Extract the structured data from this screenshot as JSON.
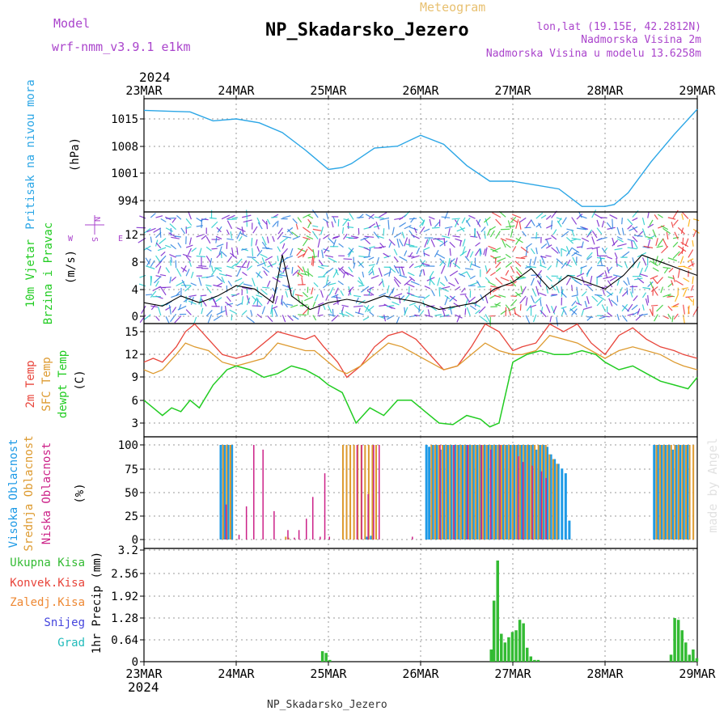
{
  "header": {
    "model_label": "Model",
    "model_value": "wrf-nmm_v3.9.1 e1km",
    "meteogram_label": "Meteogram",
    "station_title": "NP_Skadarsko_Jezero",
    "lonlat": "lon,lat (19.15E, 42.2812N)",
    "altitude": "Nadmorska Visina 2m",
    "model_altitude": "Nadmorska Visina u modelu 13.6258m",
    "footer_station": "NP_Skadarsko_Jezero",
    "watermark": "made by Angel"
  },
  "time_axis": {
    "top_year": "2024",
    "bottom_year": "2024",
    "ticks": [
      "23MAR",
      "24MAR",
      "25MAR",
      "26MAR",
      "27MAR",
      "28MAR",
      "29MAR"
    ]
  },
  "colors": {
    "pressure": "#2ba6e6",
    "temp2m": "#e8443a",
    "sfc": "#dd9a2f",
    "dewpoint": "#22cc22",
    "high_cloud": "#1e9ae6",
    "mid_cloud": "#dd9a2f",
    "low_cloud": "#cc2288",
    "precip_total": "#33bb33",
    "precip_conv": "#e8443a",
    "precip_frozen": "#ee8833",
    "precip_snow": "#4444dd",
    "precip_hail": "#22bbbb",
    "violet_text": "#aa44cc"
  },
  "chart_data": [
    {
      "type": "line",
      "panel": "pressure",
      "ylabel_line1": "Pritisak na nivou mora",
      "ylabel_units": "(hPa)",
      "yticks": [
        "994",
        "1001",
        "1008",
        "1015"
      ],
      "ylim": [
        988,
        1019
      ],
      "grid": true,
      "series": [
        {
          "x": [
            0,
            0.25,
            0.5,
            0.75,
            1.0,
            1.25,
            1.5,
            1.75,
            2.0,
            2.15,
            2.25,
            2.5,
            2.75,
            3.0,
            3.25,
            3.5,
            3.75,
            4.0,
            4.25,
            4.5,
            4.75,
            5.0,
            5.1,
            5.25,
            5.5,
            5.75,
            6.0
          ],
          "values": [
            1017.2,
            1017.0,
            1016.8,
            1014.5,
            1015.0,
            1014.0,
            1011.5,
            1007.0,
            1002.0,
            1002.5,
            1003.5,
            1007.5,
            1008.0,
            1010.8,
            1008.5,
            1003.0,
            999.0,
            999.0,
            998.0,
            997.0,
            992.5,
            992.5,
            993.0,
            996.0,
            1004.0,
            1011.0,
            1017.5
          ]
        }
      ]
    },
    {
      "type": "line",
      "panel": "wind",
      "ylabel_line1": "10m Vjetar",
      "ylabel_line2": "Brzina i Pravac",
      "ylabel_units": "(m/s)",
      "compass": {
        "n": "N",
        "s": "S",
        "e": "E",
        "w": "W"
      },
      "yticks": [
        "0",
        "4",
        "8",
        "12"
      ],
      "ylim": [
        -1,
        15
      ],
      "grid": true,
      "series": [
        {
          "x": [
            0,
            0.2,
            0.4,
            0.6,
            0.8,
            1.0,
            1.2,
            1.4,
            1.5,
            1.6,
            1.8,
            2.0,
            2.2,
            2.4,
            2.6,
            2.8,
            3.0,
            3.2,
            3.4,
            3.6,
            3.8,
            4.0,
            4.2,
            4.4,
            4.6,
            4.8,
            5.0,
            5.2,
            5.4,
            5.6,
            5.8,
            6.0
          ],
          "values": [
            2,
            1.5,
            3,
            2,
            3,
            4.5,
            4,
            2,
            9,
            3,
            1,
            2,
            2.5,
            2,
            3,
            2.5,
            2,
            1,
            1.5,
            2,
            4,
            5,
            7,
            4,
            6,
            5,
            4,
            6,
            9,
            8,
            7,
            6
          ]
        }
      ]
    },
    {
      "type": "line",
      "panel": "temperature",
      "ylabel_line1": "2m Temp",
      "ylabel_line2": "SFC Temp",
      "ylabel_line3": "dewpt Temp",
      "ylabel_units": "(C)",
      "yticks": [
        "3",
        "6",
        "9",
        "12",
        "15"
      ],
      "ylim": [
        1.3,
        16
      ],
      "grid": true,
      "series": [
        {
          "name": "2m Temp",
          "x": [
            0,
            0.1,
            0.2,
            0.35,
            0.45,
            0.55,
            0.7,
            0.85,
            1.0,
            1.15,
            1.3,
            1.45,
            1.6,
            1.75,
            1.85,
            1.95,
            2.1,
            2.2,
            2.35,
            2.5,
            2.65,
            2.8,
            2.95,
            3.1,
            3.25,
            3.4,
            3.55,
            3.7,
            3.85,
            4.0,
            4.1,
            4.25,
            4.4,
            4.55,
            4.7,
            4.85,
            5.0,
            5.15,
            5.3,
            5.45,
            5.6,
            5.75,
            5.85,
            6.0
          ],
          "values": [
            11,
            11.5,
            11,
            13,
            15,
            16,
            14,
            12,
            11.5,
            12,
            13.5,
            15,
            14.5,
            14,
            14.5,
            13,
            11,
            9,
            10.5,
            13,
            14.5,
            15,
            14,
            12,
            10,
            10.5,
            13,
            16,
            15,
            12.5,
            13,
            13.5,
            16,
            15,
            16,
            13.5,
            12,
            14.5,
            15.5,
            14,
            13,
            12.5,
            12,
            11.5
          ]
        },
        {
          "name": "SFC Temp",
          "x": [
            0,
            0.1,
            0.2,
            0.35,
            0.45,
            0.55,
            0.7,
            0.85,
            1.0,
            1.15,
            1.3,
            1.45,
            1.6,
            1.75,
            1.85,
            1.95,
            2.1,
            2.2,
            2.35,
            2.5,
            2.65,
            2.8,
            2.95,
            3.1,
            3.25,
            3.4,
            3.55,
            3.7,
            3.85,
            4.0,
            4.1,
            4.25,
            4.4,
            4.55,
            4.7,
            4.85,
            5.0,
            5.15,
            5.3,
            5.45,
            5.6,
            5.75,
            5.85,
            6.0
          ],
          "values": [
            10,
            9.5,
            10,
            12,
            13.5,
            13,
            12.5,
            11,
            10.5,
            11,
            11.5,
            13.5,
            13,
            12.5,
            12.5,
            11.5,
            10,
            9.5,
            10.5,
            12,
            13.5,
            13,
            12,
            11,
            10,
            10.5,
            12,
            13.5,
            12.5,
            12,
            12,
            12.5,
            14.5,
            14,
            13.5,
            12.5,
            11.5,
            12.5,
            13,
            12.5,
            12,
            11,
            10.5,
            10
          ]
        },
        {
          "name": "dewpt Temp",
          "x": [
            0,
            0.1,
            0.2,
            0.3,
            0.4,
            0.5,
            0.6,
            0.75,
            0.9,
            1.0,
            1.15,
            1.3,
            1.45,
            1.6,
            1.75,
            1.9,
            2.0,
            2.15,
            2.3,
            2.45,
            2.6,
            2.75,
            2.9,
            3.05,
            3.2,
            3.35,
            3.5,
            3.65,
            3.75,
            3.85,
            4.0,
            4.15,
            4.3,
            4.45,
            4.6,
            4.75,
            4.9,
            5.0,
            5.15,
            5.3,
            5.45,
            5.6,
            5.75,
            5.9,
            6.0
          ],
          "values": [
            6,
            5,
            4,
            5,
            4.5,
            6,
            5,
            8,
            10,
            10.5,
            10,
            9,
            9.5,
            10.5,
            10,
            9,
            8,
            7,
            3,
            5,
            4,
            6,
            6,
            4.5,
            3,
            2.8,
            4,
            3.5,
            2.5,
            3,
            11,
            12,
            12.5,
            12,
            12,
            12.5,
            12,
            11,
            10,
            10.5,
            9.5,
            8.5,
            8,
            7.5,
            9
          ]
        }
      ]
    },
    {
      "type": "bar",
      "panel": "clouds",
      "ylabel_line1": "Visoka Oblacnost",
      "ylabel_line2": "Srednja Oblacnost",
      "ylabel_line3": "Niska Oblacnost",
      "ylabel_units": "(%)",
      "yticks": [
        "0",
        "25",
        "50",
        "75",
        "100"
      ],
      "ylim": [
        0,
        100
      ],
      "grid": true,
      "series": [
        {
          "name": "Visoka Oblacnost",
          "x": [
            0.82,
            0.86,
            0.9,
            0.94,
            2.4,
            2.45,
            3.05,
            3.08,
            3.12,
            3.16,
            3.2,
            3.24,
            3.28,
            3.32,
            3.36,
            3.4,
            3.44,
            3.48,
            3.52,
            3.56,
            3.6,
            3.64,
            3.68,
            3.72,
            3.76,
            3.8,
            3.84,
            3.88,
            3.92,
            3.96,
            4.0,
            4.04,
            4.08,
            4.12,
            4.16,
            4.2,
            4.24,
            4.28,
            4.32,
            4.36,
            4.4,
            4.44,
            4.48,
            4.52,
            4.56,
            4.6,
            5.52,
            5.56,
            5.6,
            5.64,
            5.68,
            5.72,
            5.76,
            5.8,
            5.84,
            5.88
          ],
          "values": [
            100,
            100,
            100,
            100,
            3,
            4,
            100,
            98,
            100,
            100,
            95,
            100,
            100,
            100,
            100,
            100,
            100,
            100,
            100,
            100,
            100,
            100,
            100,
            100,
            100,
            100,
            100,
            100,
            100,
            100,
            100,
            100,
            100,
            100,
            100,
            100,
            95,
            100,
            100,
            98,
            90,
            85,
            80,
            75,
            70,
            20,
            100,
            100,
            100,
            100,
            100,
            95,
            100,
            100,
            100,
            100
          ]
        },
        {
          "name": "Srednja Oblacnost",
          "x": [
            0.84,
            0.88,
            0.92,
            1.52,
            1.55,
            2.14,
            2.18,
            2.22,
            2.26,
            2.3,
            2.34,
            2.38,
            2.42,
            2.46,
            2.5,
            3.1,
            3.14,
            3.18,
            3.22,
            3.26,
            3.3,
            3.34,
            3.38,
            3.42,
            3.46,
            3.5,
            3.54,
            3.58,
            3.62,
            3.66,
            3.7,
            3.74,
            3.78,
            3.82,
            3.86,
            3.9,
            3.94,
            3.98,
            4.02,
            4.06,
            4.1,
            4.14,
            4.18,
            4.22,
            4.26,
            4.3,
            4.34,
            4.38,
            4.42,
            4.46,
            5.54,
            5.58,
            5.62,
            5.66,
            5.7,
            5.74,
            5.78,
            5.82,
            5.86,
            5.9,
            5.94,
            6.0,
            6.04,
            6.08,
            6.12,
            6.16,
            6.2,
            6.24,
            6.28,
            6.32
          ],
          "values": [
            100,
            100,
            100,
            3,
            2,
            100,
            100,
            100,
            100,
            100,
            100,
            100,
            100,
            100,
            100,
            100,
            100,
            100,
            100,
            100,
            100,
            100,
            100,
            100,
            100,
            100,
            100,
            100,
            100,
            100,
            100,
            100,
            100,
            100,
            100,
            100,
            100,
            100,
            100,
            100,
            100,
            100,
            100,
            100,
            100,
            100,
            100,
            90,
            85,
            80,
            100,
            100,
            100,
            100,
            100,
            100,
            100,
            100,
            100,
            100,
            100,
            100,
            100,
            100,
            100,
            100,
            100,
            100,
            100,
            100
          ]
        },
        {
          "name": "Niska Oblacnost",
          "x": [
            0.88,
            1.02,
            1.1,
            1.18,
            1.28,
            1.4,
            1.55,
            1.62,
            1.67,
            1.75,
            1.82,
            1.9,
            1.95,
            2.0,
            2.3,
            2.35,
            2.42,
            2.48,
            2.54,
            2.9,
            3.2,
            3.35,
            3.5,
            3.65,
            3.75,
            3.85,
            4.05,
            4.1,
            4.2,
            4.3,
            4.35
          ],
          "values": [
            37,
            5,
            35,
            100,
            95,
            30,
            10,
            2,
            10,
            22,
            45,
            3,
            70,
            3,
            100,
            100,
            48,
            100,
            100,
            3,
            100,
            100,
            100,
            100,
            95,
            100,
            88,
            82,
            78,
            72,
            65
          ]
        }
      ]
    },
    {
      "type": "bar",
      "panel": "precipitation",
      "legend": [
        "Ukupna Kisa",
        "Konvek.Kisa",
        "Zaledj.Kisa",
        "Snijeg",
        "Grad"
      ],
      "ylabel_units": "1hr Precip (mm)",
      "yticks": [
        "0",
        "0.64",
        "1.28",
        "1.92",
        "2.56",
        "3.2"
      ],
      "ylim": [
        0,
        3.2
      ],
      "grid": true,
      "series": [
        {
          "name": "Ukupna Kisa",
          "x": [
            1.92,
            1.96,
            2.0,
            3.75,
            3.78,
            3.82,
            3.86,
            3.9,
            3.94,
            3.98,
            4.02,
            4.06,
            4.1,
            4.14,
            4.18,
            4.22,
            4.26,
            5.7,
            5.74,
            5.78,
            5.82,
            5.86,
            5.9,
            5.94,
            5.98,
            6.02,
            6.06,
            6.1,
            6.14
          ],
          "values": [
            0.3,
            0.25,
            0.05,
            0.35,
            1.75,
            2.9,
            0.8,
            0.55,
            0.7,
            0.85,
            0.9,
            1.2,
            1.1,
            0.4,
            0.15,
            0.05,
            0.05,
            0.2,
            1.25,
            1.2,
            0.9,
            0.55,
            0.2,
            0.35,
            0.1,
            0.7,
            0.1,
            0.05,
            0.05
          ]
        }
      ]
    }
  ]
}
